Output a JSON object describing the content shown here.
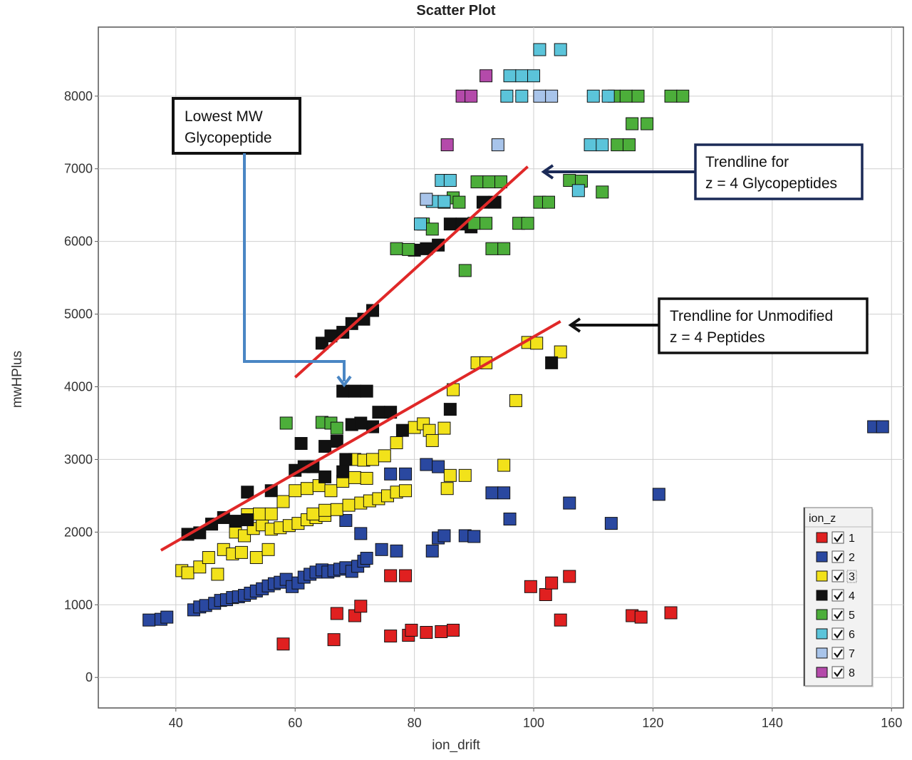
{
  "chart_data": {
    "type": "scatter",
    "title": "Scatter Plot",
    "xlabel": "ion_drift",
    "ylabel": "mwHPlus",
    "xlim": [
      27,
      162
    ],
    "ylim": [
      -420,
      8950
    ],
    "xticks": [
      40,
      60,
      80,
      100,
      120,
      140,
      160
    ],
    "yticks": [
      0,
      1000,
      2000,
      3000,
      4000,
      5000,
      6000,
      7000,
      8000
    ],
    "grid": true,
    "legend": {
      "title": "ion_z",
      "position": "bottom-right"
    },
    "series": [
      {
        "name": "1",
        "color": "#e02020",
        "points": [
          [
            58,
            460
          ],
          [
            66.5,
            520
          ],
          [
            67,
            880
          ],
          [
            70,
            850
          ],
          [
            71,
            980
          ],
          [
            76,
            570
          ],
          [
            76,
            1400
          ],
          [
            78.5,
            1400
          ],
          [
            79,
            580
          ],
          [
            79.5,
            650
          ],
          [
            82,
            620
          ],
          [
            84.5,
            630
          ],
          [
            86.5,
            650
          ],
          [
            99.5,
            1250
          ],
          [
            102,
            1140
          ],
          [
            103,
            1300
          ],
          [
            104.5,
            790
          ],
          [
            106,
            1390
          ],
          [
            116.5,
            850
          ],
          [
            118,
            830
          ],
          [
            123,
            890
          ]
        ]
      },
      {
        "name": "2",
        "color": "#2a48a0",
        "points": [
          [
            35.5,
            790
          ],
          [
            37.5,
            800
          ],
          [
            38.5,
            830
          ],
          [
            43,
            930
          ],
          [
            44,
            970
          ],
          [
            45,
            990
          ],
          [
            46.5,
            1020
          ],
          [
            47.5,
            1060
          ],
          [
            48.5,
            1070
          ],
          [
            49.5,
            1100
          ],
          [
            50.5,
            1110
          ],
          [
            51.5,
            1130
          ],
          [
            52.5,
            1160
          ],
          [
            53.5,
            1190
          ],
          [
            54.5,
            1220
          ],
          [
            55.5,
            1260
          ],
          [
            56.5,
            1290
          ],
          [
            57.5,
            1310
          ],
          [
            58.5,
            1350
          ],
          [
            59.5,
            1250
          ],
          [
            60.5,
            1300
          ],
          [
            61.5,
            1380
          ],
          [
            62.5,
            1420
          ],
          [
            63.5,
            1450
          ],
          [
            64.5,
            1480
          ],
          [
            65.5,
            1450
          ],
          [
            66.5,
            1470
          ],
          [
            67.5,
            1490
          ],
          [
            68.5,
            1510
          ],
          [
            69.5,
            1460
          ],
          [
            70.5,
            1530
          ],
          [
            71.5,
            1600
          ],
          [
            72,
            1640
          ],
          [
            68.5,
            2160
          ],
          [
            71,
            1980
          ],
          [
            74.5,
            1760
          ],
          [
            77,
            1740
          ],
          [
            76,
            2800
          ],
          [
            78.5,
            2800
          ],
          [
            82,
            2930
          ],
          [
            84,
            2900
          ],
          [
            83,
            1740
          ],
          [
            84,
            1920
          ],
          [
            85,
            1950
          ],
          [
            88.5,
            1950
          ],
          [
            90,
            1940
          ],
          [
            93,
            2540
          ],
          [
            95,
            2540
          ],
          [
            96,
            2180
          ],
          [
            106,
            2400
          ],
          [
            113,
            2120
          ],
          [
            121,
            2520
          ],
          [
            157,
            3450
          ],
          [
            158.5,
            3450
          ]
        ]
      },
      {
        "name": "3",
        "color": "#f2e21a",
        "points": [
          [
            41,
            1470
          ],
          [
            42,
            1440
          ],
          [
            44,
            1520
          ],
          [
            47,
            1420
          ],
          [
            45.5,
            1650
          ],
          [
            48,
            1760
          ],
          [
            49.5,
            1700
          ],
          [
            51,
            1720
          ],
          [
            53.5,
            1650
          ],
          [
            55.5,
            1760
          ],
          [
            50,
            2000
          ],
          [
            51.5,
            1950
          ],
          [
            53,
            2050
          ],
          [
            54.5,
            2100
          ],
          [
            56,
            2040
          ],
          [
            57.5,
            2060
          ],
          [
            59,
            2090
          ],
          [
            60.5,
            2120
          ],
          [
            62,
            2170
          ],
          [
            63.5,
            2200
          ],
          [
            65,
            2230
          ],
          [
            52,
            2240
          ],
          [
            54,
            2250
          ],
          [
            56,
            2250
          ],
          [
            58,
            2420
          ],
          [
            60,
            2570
          ],
          [
            62,
            2600
          ],
          [
            64,
            2640
          ],
          [
            66,
            2570
          ],
          [
            68,
            2700
          ],
          [
            70,
            2750
          ],
          [
            72,
            2740
          ],
          [
            63,
            2250
          ],
          [
            65,
            2300
          ],
          [
            67,
            2310
          ],
          [
            69,
            2370
          ],
          [
            71,
            2400
          ],
          [
            72.5,
            2430
          ],
          [
            74,
            2460
          ],
          [
            75.5,
            2500
          ],
          [
            77,
            2550
          ],
          [
            78.5,
            2570
          ],
          [
            70,
            3000
          ],
          [
            71.5,
            2990
          ],
          [
            73,
            3000
          ],
          [
            75,
            3050
          ],
          [
            77,
            3230
          ],
          [
            80,
            3440
          ],
          [
            81.5,
            3490
          ],
          [
            82.5,
            3400
          ],
          [
            83,
            3260
          ],
          [
            85,
            3430
          ],
          [
            85.5,
            2600
          ],
          [
            86,
            2780
          ],
          [
            86.5,
            3960
          ],
          [
            88.5,
            2780
          ],
          [
            90.5,
            4330
          ],
          [
            92,
            4330
          ],
          [
            95,
            2920
          ],
          [
            97,
            3810
          ],
          [
            99,
            4610
          ],
          [
            100.5,
            4600
          ],
          [
            104.5,
            4480
          ]
        ]
      },
      {
        "name": "4",
        "color": "#111111",
        "points": [
          [
            42,
            1970
          ],
          [
            44,
            1990
          ],
          [
            46,
            2110
          ],
          [
            48,
            2200
          ],
          [
            50,
            2150
          ],
          [
            52,
            2170
          ],
          [
            56,
            2570
          ],
          [
            60,
            2850
          ],
          [
            61.5,
            2900
          ],
          [
            63,
            2900
          ],
          [
            65,
            3180
          ],
          [
            67,
            3250
          ],
          [
            68.5,
            3000
          ],
          [
            69.5,
            3480
          ],
          [
            71,
            3500
          ],
          [
            73,
            3450
          ],
          [
            74,
            3650
          ],
          [
            76,
            3650
          ],
          [
            78,
            3400
          ],
          [
            52,
            2550
          ],
          [
            61,
            3220
          ],
          [
            65,
            2760
          ],
          [
            68,
            2830
          ],
          [
            86,
            3690
          ],
          [
            64.5,
            4600
          ],
          [
            66,
            4700
          ],
          [
            68,
            4750
          ],
          [
            69.5,
            4870
          ],
          [
            71.5,
            4930
          ],
          [
            73,
            5050
          ],
          [
            68,
            3940
          ],
          [
            70,
            3940
          ],
          [
            72,
            3940
          ],
          [
            80,
            5880
          ],
          [
            82,
            5900
          ],
          [
            84,
            5950
          ],
          [
            86,
            6240
          ],
          [
            88,
            6240
          ],
          [
            89.5,
            6200
          ],
          [
            91.5,
            6540
          ],
          [
            93.5,
            6540
          ],
          [
            103,
            4330
          ]
        ]
      },
      {
        "name": "5",
        "color": "#4cae3a",
        "points": [
          [
            58.5,
            3500
          ],
          [
            64.5,
            3510
          ],
          [
            66,
            3500
          ],
          [
            67,
            3430
          ],
          [
            77,
            5900
          ],
          [
            79,
            5890
          ],
          [
            81.5,
            6240
          ],
          [
            83,
            6170
          ],
          [
            85,
            6540
          ],
          [
            86.5,
            6600
          ],
          [
            87.5,
            6540
          ],
          [
            88.5,
            5600
          ],
          [
            90,
            6250
          ],
          [
            92,
            6250
          ],
          [
            90.5,
            6820
          ],
          [
            92.5,
            6820
          ],
          [
            94.5,
            6820
          ],
          [
            93,
            5900
          ],
          [
            95,
            5900
          ],
          [
            97.5,
            6250
          ],
          [
            99,
            6250
          ],
          [
            101,
            6540
          ],
          [
            102.5,
            6540
          ],
          [
            106,
            6840
          ],
          [
            108,
            6830
          ],
          [
            111.5,
            6680
          ],
          [
            114,
            7330
          ],
          [
            116,
            7330
          ],
          [
            113.5,
            8000
          ],
          [
            115.5,
            8000
          ],
          [
            117.5,
            8000
          ],
          [
            116.5,
            7620
          ],
          [
            119,
            7620
          ],
          [
            123,
            8000
          ],
          [
            125,
            8000
          ]
        ]
      },
      {
        "name": "6",
        "color": "#5bc4da",
        "points": [
          [
            81,
            6240
          ],
          [
            83,
            6550
          ],
          [
            85,
            6550
          ],
          [
            84.5,
            6840
          ],
          [
            86,
            6840
          ],
          [
            95.5,
            8000
          ],
          [
            98,
            8000
          ],
          [
            96,
            8280
          ],
          [
            98,
            8280
          ],
          [
            100,
            8280
          ],
          [
            101,
            8640
          ],
          [
            104.5,
            8640
          ],
          [
            107.5,
            6700
          ],
          [
            109.5,
            7330
          ],
          [
            111.5,
            7330
          ],
          [
            110,
            8000
          ],
          [
            112.5,
            8000
          ]
        ]
      },
      {
        "name": "7",
        "color": "#a8c4ea",
        "points": [
          [
            82,
            6580
          ],
          [
            94,
            7330
          ],
          [
            101,
            8000
          ],
          [
            103,
            8000
          ]
        ]
      },
      {
        "name": "8",
        "color": "#b44aaa",
        "points": [
          [
            85.5,
            7330
          ],
          [
            88,
            8000
          ],
          [
            89.5,
            8000
          ],
          [
            92,
            8280
          ]
        ]
      }
    ],
    "annotations": [
      {
        "lines": [
          "Lowest MW",
          "Glycopeptide"
        ]
      },
      {
        "lines": [
          "Trendline for",
          "z = 4 Glycopeptides"
        ]
      },
      {
        "lines": [
          "Trendline for Unmodified",
          "z = 4 Peptides"
        ]
      }
    ],
    "trendlines": [
      {
        "from": [
          60,
          4130
        ],
        "to": [
          99,
          7030
        ],
        "color": "#e02828"
      },
      {
        "from": [
          37.5,
          1750
        ],
        "to": [
          104.5,
          4900
        ],
        "color": "#e02828"
      }
    ]
  }
}
